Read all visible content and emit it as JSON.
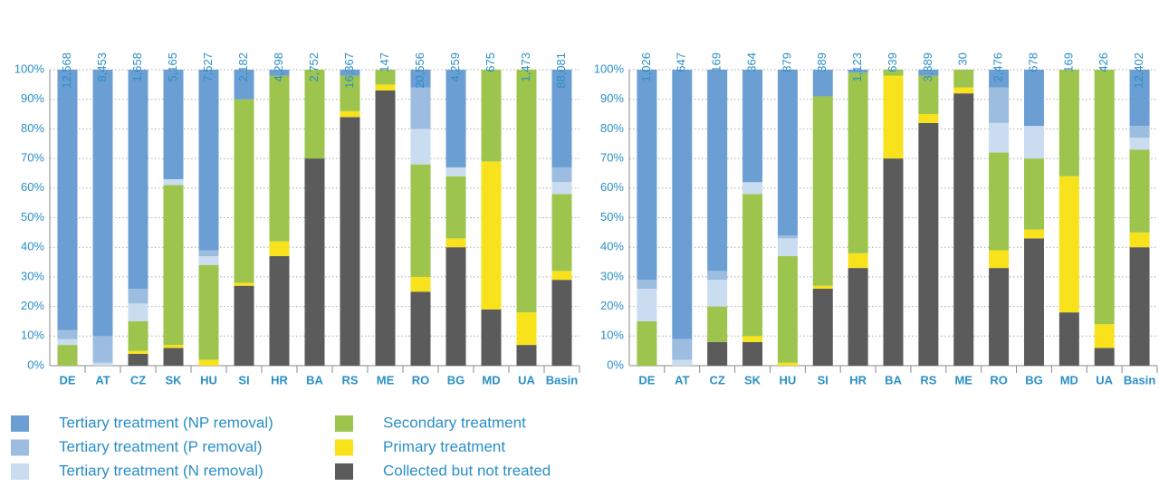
{
  "chart_data": [
    {
      "type": "stacked-bar",
      "categories": [
        "DE",
        "AT",
        "CZ",
        "SK",
        "HU",
        "SI",
        "HR",
        "BA",
        "RS",
        "ME",
        "RO",
        "BG",
        "MD",
        "UA",
        "Basin"
      ],
      "totals": {
        "values": [
          12568,
          8453,
          1658,
          5165,
          7527,
          2182,
          4298,
          2752,
          16367,
          147,
          20556,
          4259,
          675,
          1473,
          88081
        ],
        "value_labels": [
          "12,568",
          "8,453",
          "1,658",
          "5,165",
          "7,527",
          "2,182",
          "4,298",
          "2,752",
          "16,367",
          "147",
          "20,556",
          "4,259",
          "675",
          "1,473",
          "88,081"
        ]
      },
      "ylim": [
        0,
        100
      ],
      "yticks": [
        {
          "value": 0,
          "label": "0%"
        },
        {
          "value": 10,
          "label": "10%"
        },
        {
          "value": 20,
          "label": "20%"
        },
        {
          "value": 30,
          "label": "30%"
        },
        {
          "value": 40,
          "label": "40%"
        },
        {
          "value": 50,
          "label": "50%"
        },
        {
          "value": 60,
          "label": "60%"
        },
        {
          "value": 70,
          "label": "70%"
        },
        {
          "value": 80,
          "label": "80%"
        },
        {
          "value": 90,
          "label": "90%"
        },
        {
          "value": 100,
          "label": "100%"
        }
      ],
      "grid": true,
      "series": [
        {
          "name": "Collected but not treated",
          "color": "#5b5b5b",
          "values": [
            0,
            0,
            4,
            6,
            0,
            27,
            37,
            70,
            84,
            93,
            25,
            40,
            19,
            7,
            29
          ]
        },
        {
          "name": "Primary treatment",
          "color": "#f7e21b",
          "values": [
            0,
            0,
            1,
            1,
            2,
            1,
            5,
            0,
            2,
            2,
            5,
            3,
            50,
            11,
            3
          ]
        },
        {
          "name": "Secondary treatment",
          "color": "#9dc44d",
          "values": [
            7,
            0,
            10,
            54,
            32,
            62,
            56,
            30,
            12,
            5,
            38,
            21,
            31,
            82,
            26
          ]
        },
        {
          "name": "Tertiary treatment (N removal)",
          "color": "#c9dcf0",
          "values": [
            2,
            1,
            6,
            2,
            3,
            0,
            0,
            0,
            0,
            0,
            12,
            3,
            0,
            0,
            4
          ]
        },
        {
          "name": "Tertiary treatment (P removal)",
          "color": "#9cbce0",
          "values": [
            3,
            9,
            5,
            0,
            2,
            0,
            0,
            0,
            0,
            0,
            14,
            0,
            0,
            0,
            5
          ]
        },
        {
          "name": "Tertiary treatment (NP removal)",
          "color": "#6b9fd3",
          "values": [
            88,
            90,
            74,
            37,
            61,
            10,
            2,
            0,
            2,
            0,
            6,
            33,
            0,
            0,
            33
          ]
        }
      ]
    },
    {
      "type": "stacked-bar",
      "categories": [
        "DE",
        "AT",
        "CZ",
        "SK",
        "HU",
        "SI",
        "HR",
        "BA",
        "RS",
        "ME",
        "RO",
        "BG",
        "MD",
        "UA",
        "Basin"
      ],
      "totals": {
        "values": [
          1026,
          647,
          169,
          364,
          879,
          389,
          1123,
          639,
          3389,
          30,
          2476,
          678,
          169,
          426,
          12402
        ],
        "value_labels": [
          "1,026",
          "647",
          "169",
          "364",
          "879",
          "389",
          "1,123",
          "639",
          "3,389",
          "30",
          "2,476",
          "678",
          "169",
          "426",
          "12,402"
        ]
      },
      "ylim": [
        0,
        100
      ],
      "yticks": [
        {
          "value": 0,
          "label": "0%"
        },
        {
          "value": 10,
          "label": "10%"
        },
        {
          "value": 20,
          "label": "20%"
        },
        {
          "value": 30,
          "label": "30%"
        },
        {
          "value": 40,
          "label": "40%"
        },
        {
          "value": 50,
          "label": "50%"
        },
        {
          "value": 60,
          "label": "60%"
        },
        {
          "value": 70,
          "label": "70%"
        },
        {
          "value": 80,
          "label": "80%"
        },
        {
          "value": 90,
          "label": "90%"
        },
        {
          "value": 100,
          "label": "100%"
        }
      ],
      "grid": true,
      "series": [
        {
          "color": "#5b5b5b",
          "values": [
            0,
            0,
            8,
            8,
            0,
            26,
            33,
            70,
            82,
            92,
            33,
            43,
            18,
            6,
            40
          ]
        },
        {
          "color": "#f7e21b",
          "values": [
            0,
            0,
            0,
            2,
            1,
            1,
            5,
            28,
            3,
            2,
            6,
            3,
            46,
            8,
            5
          ]
        },
        {
          "color": "#9dc44d",
          "values": [
            15,
            0,
            12,
            48,
            36,
            64,
            61,
            2,
            13,
            6,
            33,
            24,
            36,
            86,
            28
          ]
        },
        {
          "color": "#c9dcf0",
          "values": [
            11,
            2,
            9,
            4,
            6,
            0,
            0,
            0,
            0,
            0,
            10,
            11,
            0,
            0,
            4
          ]
        },
        {
          "color": "#9cbce0",
          "values": [
            3,
            7,
            3,
            0,
            1,
            0,
            0,
            0,
            0,
            0,
            12,
            0,
            0,
            0,
            4
          ]
        },
        {
          "color": "#6b9fd3",
          "values": [
            71,
            91,
            68,
            38,
            56,
            9,
            1,
            0,
            2,
            0,
            6,
            19,
            0,
            0,
            19
          ]
        }
      ]
    }
  ]
}
